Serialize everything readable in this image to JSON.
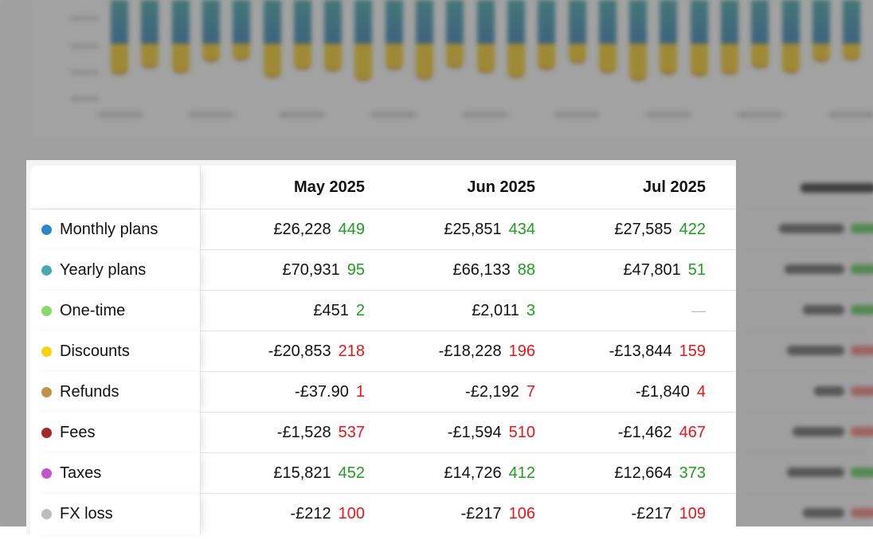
{
  "columns": [
    "May 2025",
    "Jun 2025",
    "Jul 2025"
  ],
  "colors": {
    "positive": "#1e9e1e",
    "negative": "#e8141a"
  },
  "rows": [
    {
      "label": "Monthly plans",
      "dot": "#2a88c4",
      "cells": [
        {
          "amount": "£26,228",
          "count": "449",
          "tone": "green"
        },
        {
          "amount": "£25,851",
          "count": "434",
          "tone": "green"
        },
        {
          "amount": "£27,585",
          "count": "422",
          "tone": "green"
        }
      ]
    },
    {
      "label": "Yearly plans",
      "dot": "#4aa9ae",
      "cells": [
        {
          "amount": "£70,931",
          "count": "95",
          "tone": "green"
        },
        {
          "amount": "£66,133",
          "count": "88",
          "tone": "green"
        },
        {
          "amount": "£47,801",
          "count": "51",
          "tone": "green"
        }
      ]
    },
    {
      "label": "One-time",
      "dot": "#86d96a",
      "cells": [
        {
          "amount": "£451",
          "count": "2",
          "tone": "green"
        },
        {
          "amount": "£2,011",
          "count": "3",
          "tone": "green"
        },
        {
          "amount": "—",
          "count": "",
          "tone": "dash"
        }
      ]
    },
    {
      "label": "Discounts",
      "dot": "#f7d30c",
      "cells": [
        {
          "amount": "-£20,853",
          "count": "218",
          "tone": "red"
        },
        {
          "amount": "-£18,228",
          "count": "196",
          "tone": "red"
        },
        {
          "amount": "-£13,844",
          "count": "159",
          "tone": "red"
        }
      ]
    },
    {
      "label": "Refunds",
      "dot": "#c4914b",
      "cells": [
        {
          "amount": "-£37.90",
          "count": "1",
          "tone": "red"
        },
        {
          "amount": "-£2,192",
          "count": "7",
          "tone": "red"
        },
        {
          "amount": "-£1,840",
          "count": "4",
          "tone": "red"
        }
      ]
    },
    {
      "label": "Fees",
      "dot": "#a3282c",
      "cells": [
        {
          "amount": "-£1,528",
          "count": "537",
          "tone": "red"
        },
        {
          "amount": "-£1,594",
          "count": "510",
          "tone": "red"
        },
        {
          "amount": "-£1,462",
          "count": "467",
          "tone": "red"
        }
      ]
    },
    {
      "label": "Taxes",
      "dot": "#c256c6",
      "cells": [
        {
          "amount": "£15,821",
          "count": "452",
          "tone": "green"
        },
        {
          "amount": "£14,726",
          "count": "412",
          "tone": "green"
        },
        {
          "amount": "£12,664",
          "count": "373",
          "tone": "green"
        }
      ]
    },
    {
      "label": "FX loss",
      "dot": "#bdbdbd",
      "cells": [
        {
          "amount": "-£212",
          "count": "100",
          "tone": "red"
        },
        {
          "amount": "-£217",
          "count": "106",
          "tone": "red"
        },
        {
          "amount": "-£217",
          "count": "109",
          "tone": "red"
        }
      ]
    }
  ]
}
